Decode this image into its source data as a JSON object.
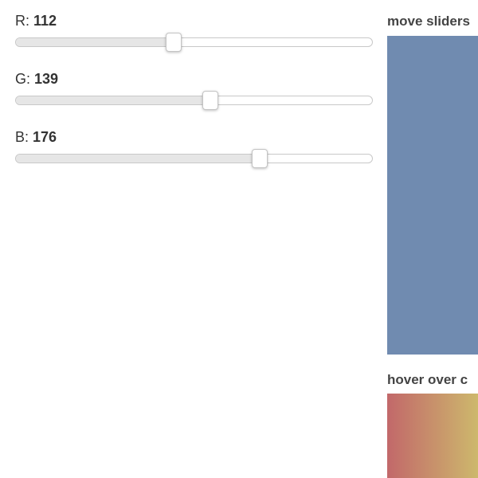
{
  "sliders": [
    {
      "channel": "R",
      "value": 112,
      "max": 255
    },
    {
      "channel": "G",
      "value": 139,
      "max": 255
    },
    {
      "channel": "B",
      "value": 176,
      "max": 255
    }
  ],
  "preview": {
    "heading": "move sliders",
    "color": "#708bb0"
  },
  "gradient": {
    "heading": "hover over c",
    "color_start": "#c2686a",
    "color_end": "#cdb86c"
  }
}
